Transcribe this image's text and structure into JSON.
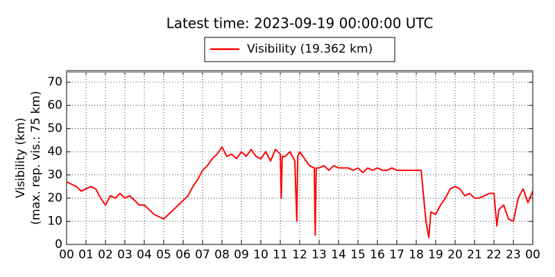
{
  "chart_data": {
    "type": "line",
    "title": "Latest time: 2023-09-19 00:00:00 UTC",
    "ylabel": [
      "Visibility (km)",
      "(max. rep. vis.: 75 km)"
    ],
    "xlim": [
      0,
      24
    ],
    "ylim": [
      0,
      75
    ],
    "yticks": [
      0,
      10,
      20,
      30,
      40,
      50,
      60,
      70
    ],
    "xticks": [
      {
        "value": 0,
        "label": "00"
      },
      {
        "value": 1,
        "label": "01"
      },
      {
        "value": 2,
        "label": "02"
      },
      {
        "value": 3,
        "label": "03"
      },
      {
        "value": 4,
        "label": "04"
      },
      {
        "value": 5,
        "label": "05"
      },
      {
        "value": 6,
        "label": "06"
      },
      {
        "value": 7,
        "label": "07"
      },
      {
        "value": 8,
        "label": "08"
      },
      {
        "value": 9,
        "label": "09"
      },
      {
        "value": 10,
        "label": "10"
      },
      {
        "value": 11,
        "label": "11"
      },
      {
        "value": 12,
        "label": "12"
      },
      {
        "value": 13,
        "label": "13"
      },
      {
        "value": 14,
        "label": "14"
      },
      {
        "value": 15,
        "label": "15"
      },
      {
        "value": 16,
        "label": "16"
      },
      {
        "value": 17,
        "label": "17"
      },
      {
        "value": 18,
        "label": "18"
      },
      {
        "value": 19,
        "label": "19"
      },
      {
        "value": 20,
        "label": "20"
      },
      {
        "value": 21,
        "label": "21"
      },
      {
        "value": 22,
        "label": "22"
      },
      {
        "value": 23,
        "label": "23"
      },
      {
        "value": 24,
        "label": "00"
      }
    ],
    "grid": true,
    "legend": "top",
    "x": [
      0,
      0.25,
      0.5,
      0.75,
      1,
      1.25,
      1.5,
      1.75,
      2,
      2.25,
      2.5,
      2.75,
      3,
      3.25,
      3.5,
      3.75,
      4,
      4.25,
      4.5,
      4.75,
      5,
      5.25,
      5.5,
      5.75,
      6,
      6.25,
      6.5,
      6.75,
      7,
      7.25,
      7.5,
      7.75,
      8,
      8.25,
      8.5,
      8.75,
      9,
      9.25,
      9.5,
      9.75,
      10,
      10.25,
      10.5,
      10.75,
      11,
      11.05,
      11.1,
      11.25,
      11.5,
      11.75,
      11.85,
      11.9,
      12,
      12.25,
      12.5,
      12.75,
      12.8,
      12.85,
      13,
      13.25,
      13.5,
      13.75,
      14,
      14.25,
      14.5,
      14.75,
      15,
      15.25,
      15.5,
      15.75,
      16,
      16.25,
      16.5,
      16.75,
      17,
      17.25,
      17.5,
      17.75,
      18,
      18.25,
      18.5,
      18.65,
      18.75,
      19,
      19.25,
      19.5,
      19.75,
      20,
      20.25,
      20.5,
      20.75,
      21,
      21.25,
      21.5,
      21.75,
      22,
      22.15,
      22.25,
      22.5,
      22.75,
      23,
      23.25,
      23.5,
      23.75,
      24
    ],
    "series": [
      {
        "name": "Visibility (19.362 km)",
        "color": "#ff0000",
        "values": [
          27,
          26,
          25,
          23,
          24,
          25,
          24,
          20,
          17,
          21,
          20,
          22,
          20,
          21,
          19,
          17,
          17,
          15,
          13,
          12,
          11,
          13,
          15,
          17,
          19,
          21,
          25,
          28,
          32,
          34,
          37,
          39,
          42,
          38,
          39,
          37,
          40,
          38,
          41,
          38,
          37,
          40,
          36,
          41,
          39,
          20,
          38,
          38,
          40,
          36,
          10,
          38,
          40,
          37,
          34,
          33,
          4,
          33,
          33,
          34,
          32,
          34,
          33,
          33,
          33,
          32,
          33,
          31,
          33,
          32,
          33,
          32,
          32,
          33,
          32,
          32,
          32,
          32,
          32,
          32,
          10,
          3,
          14,
          13,
          17,
          20,
          24,
          25,
          24,
          21,
          22,
          20,
          20,
          21,
          22,
          22,
          8,
          15,
          17,
          11,
          10,
          20,
          24,
          18,
          23
        ]
      }
    ]
  }
}
